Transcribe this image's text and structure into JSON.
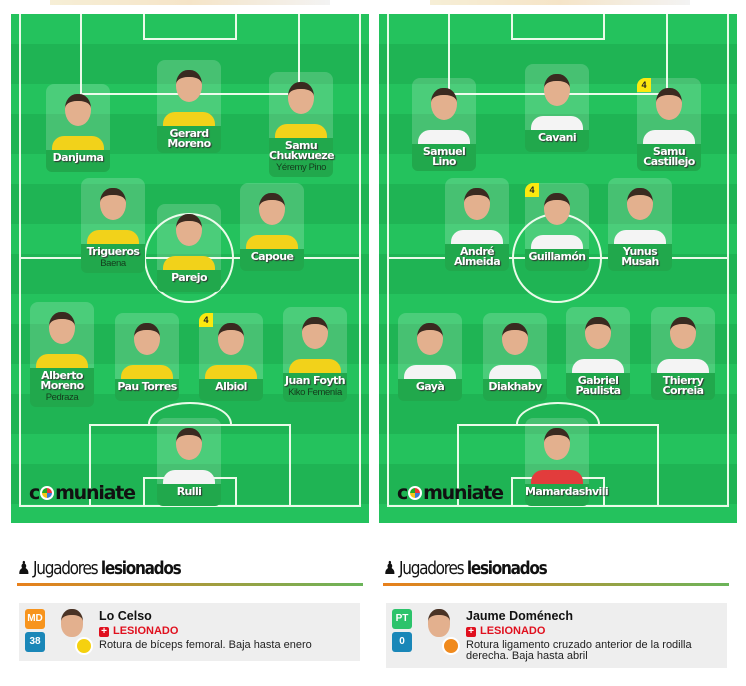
{
  "brand": "comuniate",
  "teams": [
    {
      "side": "left",
      "kit": "yellow",
      "players": [
        {
          "name": [
            "Danjuma"
          ],
          "sub": ""
        },
        {
          "name": [
            "Gerard",
            "Moreno"
          ],
          "sub": ""
        },
        {
          "name": [
            "Samu",
            "Chukwueze"
          ],
          "sub": "Yéremy Pino"
        },
        {
          "name": [
            "Trigueros"
          ],
          "sub": "Baena"
        },
        {
          "name": [
            "Parejo"
          ],
          "sub": ""
        },
        {
          "name": [
            "Capoue"
          ],
          "sub": ""
        },
        {
          "name": [
            "Alberto",
            "Moreno"
          ],
          "sub": "Pedraza"
        },
        {
          "name": [
            "Pau Torres"
          ],
          "sub": ""
        },
        {
          "name": [
            "Albiol"
          ],
          "sub": "",
          "badge": "4"
        },
        {
          "name": [
            "Juan Foyth"
          ],
          "sub": "Kiko Femenía"
        },
        {
          "name": [
            "Rulli"
          ],
          "sub": "",
          "gk": true
        }
      ]
    },
    {
      "side": "right",
      "kit": "white",
      "players": [
        {
          "name": [
            "Samuel",
            "Lino"
          ],
          "sub": ""
        },
        {
          "name": [
            "Cavani"
          ],
          "sub": ""
        },
        {
          "name": [
            "Samu",
            "Castillejo"
          ],
          "sub": "",
          "badge": "4"
        },
        {
          "name": [
            "André",
            "Almeida"
          ],
          "sub": ""
        },
        {
          "name": [
            "Guillamón"
          ],
          "sub": "",
          "badge": "4"
        },
        {
          "name": [
            "Yunus",
            "Musah"
          ],
          "sub": ""
        },
        {
          "name": [
            "Gayà"
          ],
          "sub": ""
        },
        {
          "name": [
            "Diakhaby"
          ],
          "sub": ""
        },
        {
          "name": [
            "Gabriel",
            "Paulista"
          ],
          "sub": ""
        },
        {
          "name": [
            "Thierry",
            "Correia"
          ],
          "sub": ""
        },
        {
          "name": [
            "Mamardashvili"
          ],
          "sub": "",
          "gk": true
        }
      ]
    }
  ],
  "injured": [
    {
      "title_a": "Jugadores",
      "title_b": "lesionados",
      "player": "Lo Celso",
      "position": "MD",
      "position_color": "#f7941d",
      "points": "38",
      "status": "LESIONADO",
      "description": "Rotura de bíceps femoral. Baja hasta enero",
      "club_colors": "#f5d10f"
    },
    {
      "title_a": "Jugadores",
      "title_b": "lesionados",
      "player": "Jaume Doménech",
      "position": "PT",
      "position_color": "#2cc36b",
      "points": "0",
      "status": "LESIONADO",
      "description": "Rotura ligamento cruzado anterior de la rodilla derecha. Baja hasta abril",
      "club_colors": "#f08a1d"
    }
  ]
}
